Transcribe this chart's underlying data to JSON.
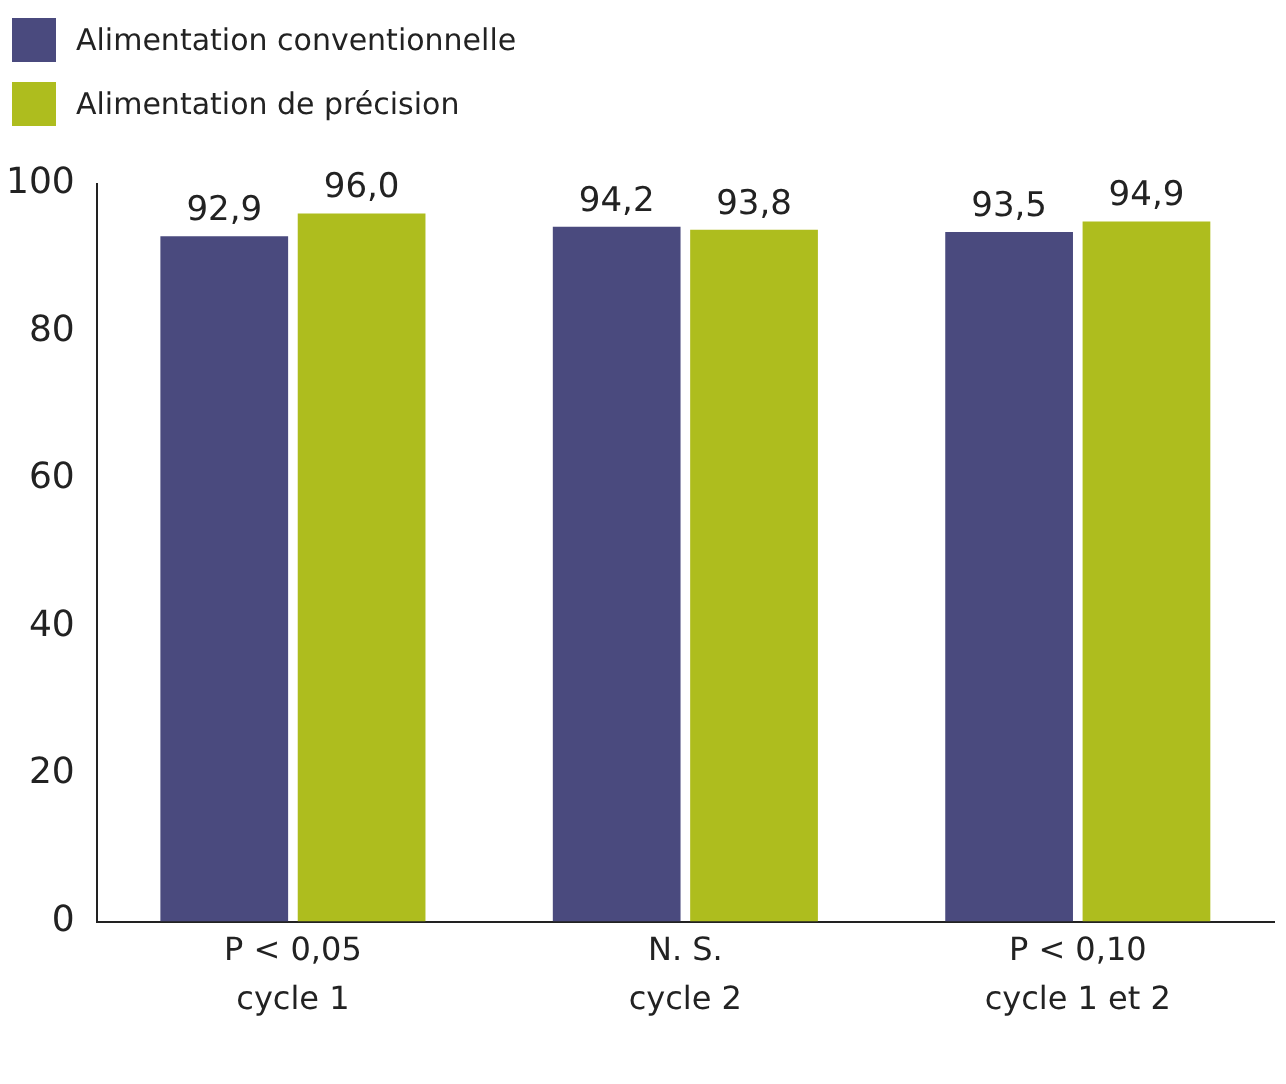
{
  "chart_data": {
    "type": "bar",
    "categories": [
      "cycle 1",
      "cycle 2",
      "cycle 1 et 2"
    ],
    "series": [
      {
        "name": "Alimentation conventionnelle",
        "color": "#4a4a7e",
        "values": [
          92.9,
          94.2,
          93.5
        ],
        "value_labels": [
          "92,9",
          "94,2",
          "93,5"
        ]
      },
      {
        "name": "Alimentation de précision",
        "color": "#aebd1e",
        "values": [
          96.0,
          93.8,
          94.9
        ],
        "value_labels": [
          "96,0",
          "93,8",
          "94,9"
        ]
      }
    ],
    "ylim": [
      0,
      100
    ],
    "yticks": [
      0,
      20,
      40,
      60,
      80,
      100
    ],
    "grid": false,
    "legend": "top left",
    "annotations": [
      "P < 0,05",
      "N. S.",
      "P < 0,10"
    ]
  }
}
